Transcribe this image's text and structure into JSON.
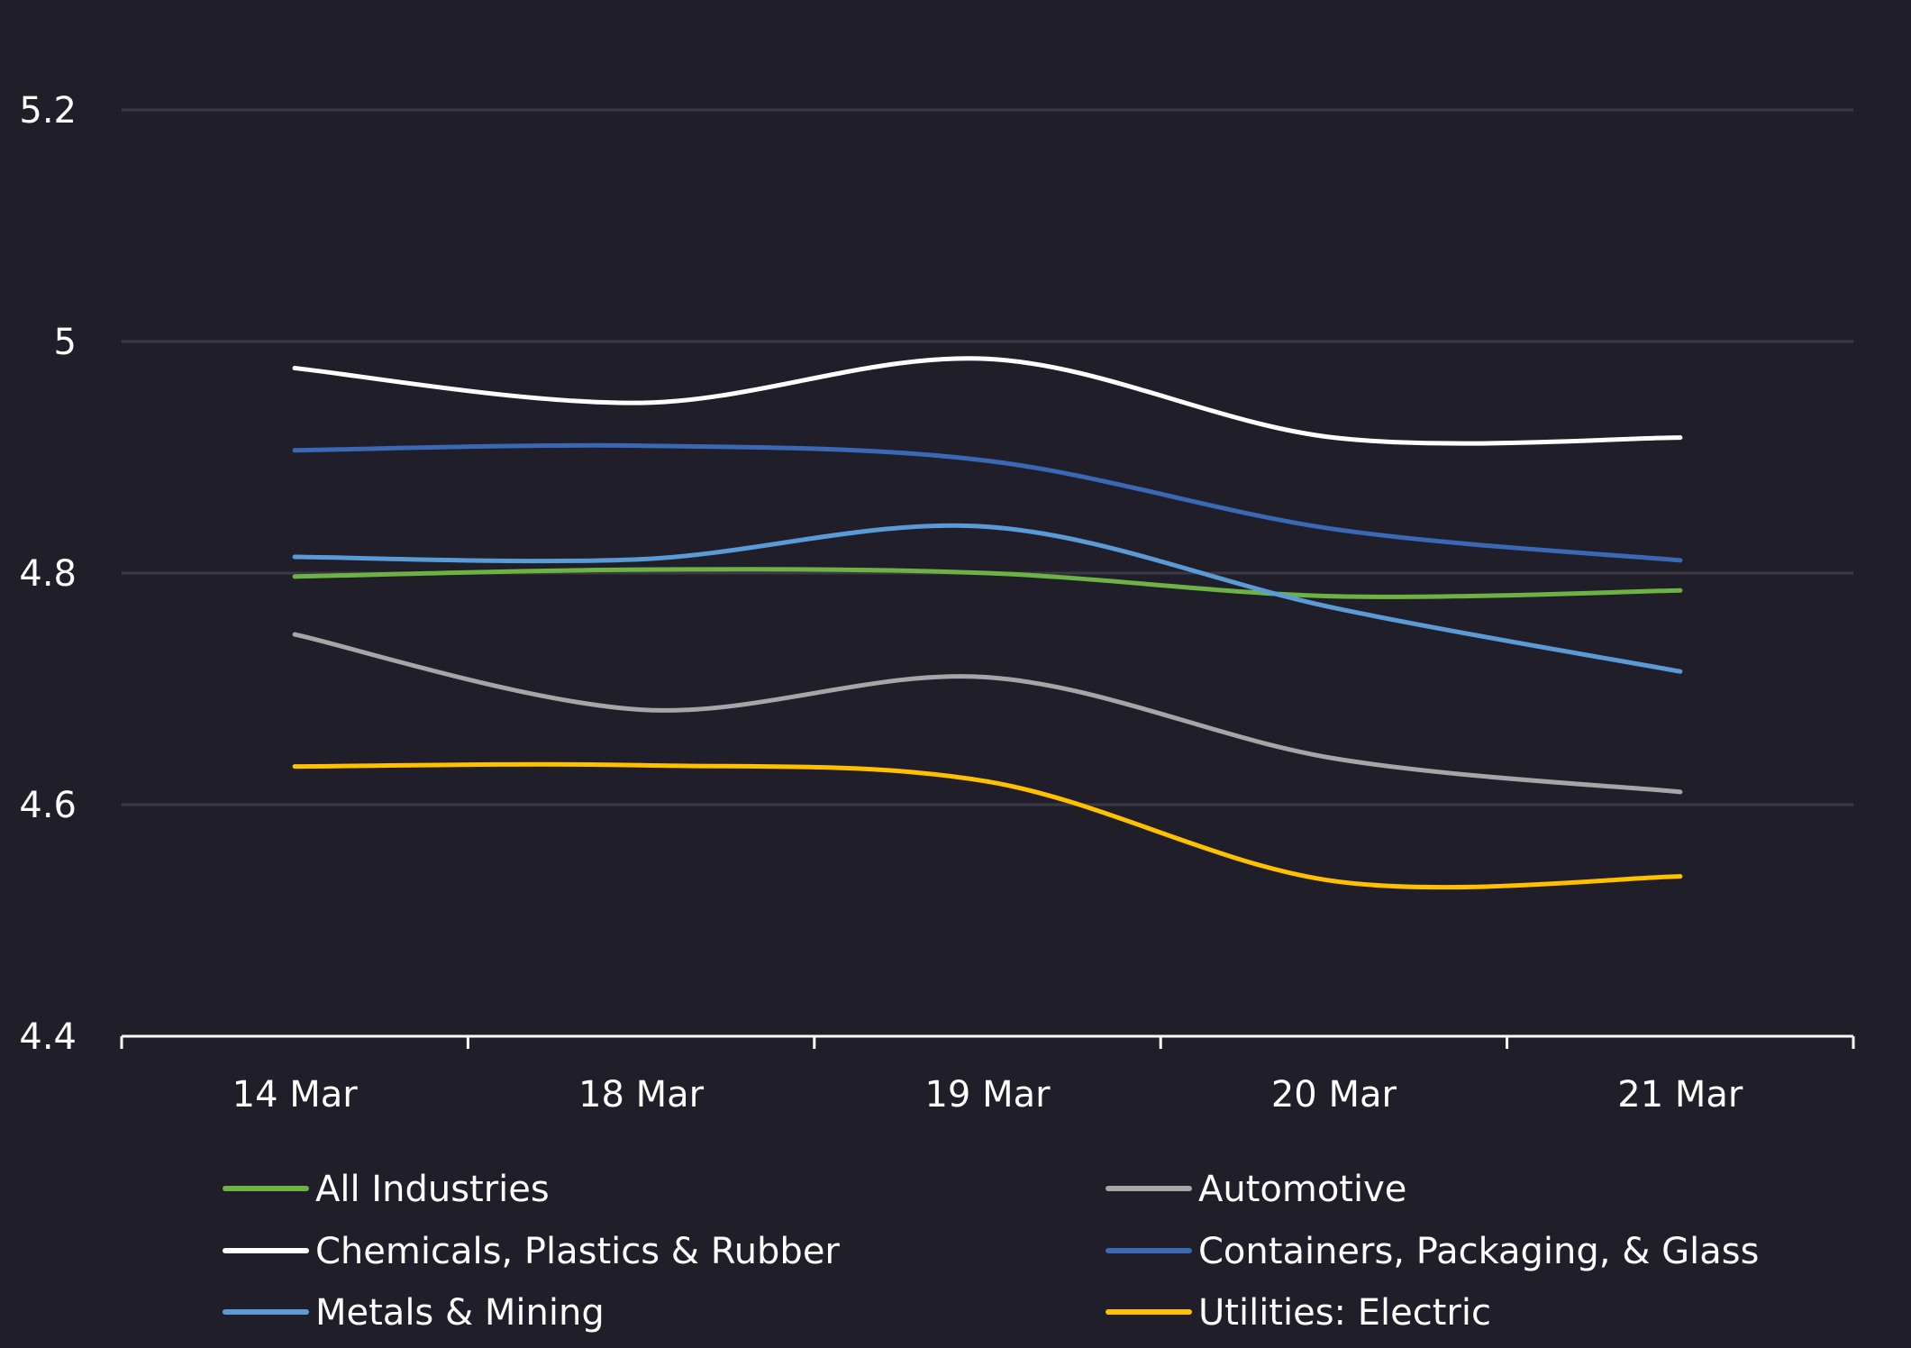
{
  "chart_data": {
    "type": "line",
    "title": "",
    "xlabel": "",
    "ylabel": "",
    "categories": [
      "14 Mar",
      "18 Mar",
      "19 Mar",
      "20 Mar",
      "21 Mar"
    ],
    "ylim": [
      4.4,
      5.2
    ],
    "yticks": [
      "4.4",
      "4.6",
      "4.8",
      "5",
      "5.2"
    ],
    "grid": true,
    "legend_position": "bottom",
    "series": [
      {
        "name": "All Industries",
        "color": "#6cb344",
        "values": [
          4.797,
          4.803,
          4.8,
          4.78,
          4.785
        ]
      },
      {
        "name": "Automotive",
        "color": "#a6a6a8",
        "values": [
          4.747,
          4.682,
          4.71,
          4.64,
          4.611
        ]
      },
      {
        "name": "Chemicals, Plastics & Rubber",
        "color": "#ffffff",
        "values": [
          4.977,
          4.947,
          4.985,
          4.917,
          4.917
        ]
      },
      {
        "name": "Containers, Packaging, & Glass",
        "color": "#3a68b5",
        "values": [
          4.906,
          4.91,
          4.897,
          4.838,
          4.811
        ]
      },
      {
        "name": "Metals & Mining",
        "color": "#5b9bd5",
        "values": [
          4.814,
          4.812,
          4.84,
          4.77,
          4.715
        ]
      },
      {
        "name": "Utilities: Electric",
        "color": "#ffc000",
        "values": [
          4.633,
          4.634,
          4.62,
          4.534,
          4.538
        ]
      }
    ]
  }
}
